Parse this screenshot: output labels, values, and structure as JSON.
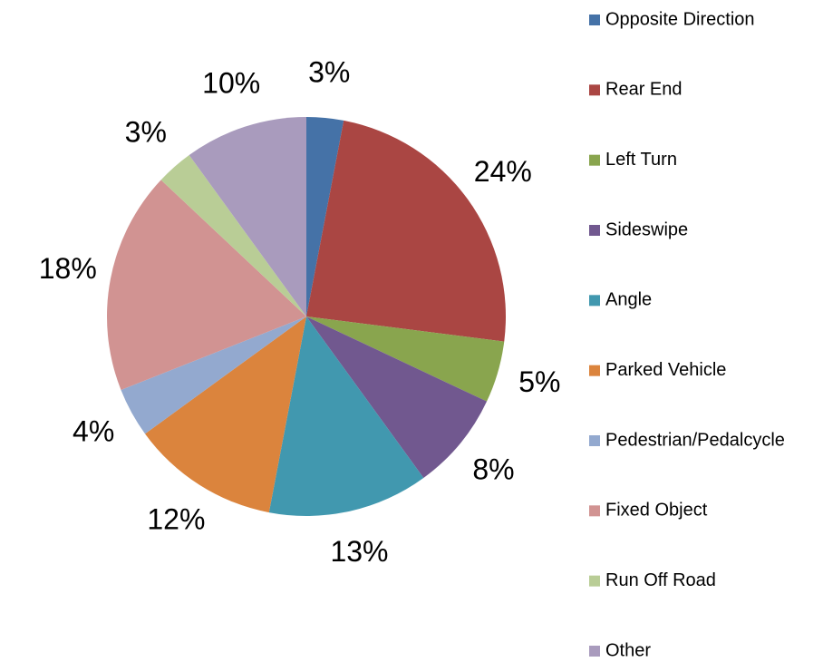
{
  "chart_data": {
    "type": "pie",
    "categories": [
      "Opposite Direction",
      "Rear End",
      "Left Turn",
      "Sideswipe",
      "Angle",
      "Parked Vehicle",
      "Pedestrian/Pedalcycle",
      "Fixed Object",
      "Run Off Road",
      "Other"
    ],
    "values": [
      3,
      24,
      5,
      8,
      13,
      12,
      4,
      18,
      3,
      10
    ],
    "value_labels": [
      "3%",
      "24%",
      "5%",
      "8%",
      "13%",
      "12%",
      "4%",
      "18%",
      "3%",
      "10%"
    ],
    "colors": [
      "#4572a7",
      "#aa4643",
      "#89a54e",
      "#71588f",
      "#4198af",
      "#db843d",
      "#93a9cf",
      "#d19392",
      "#b9cd96",
      "#a99bbd"
    ],
    "legend": "right"
  }
}
